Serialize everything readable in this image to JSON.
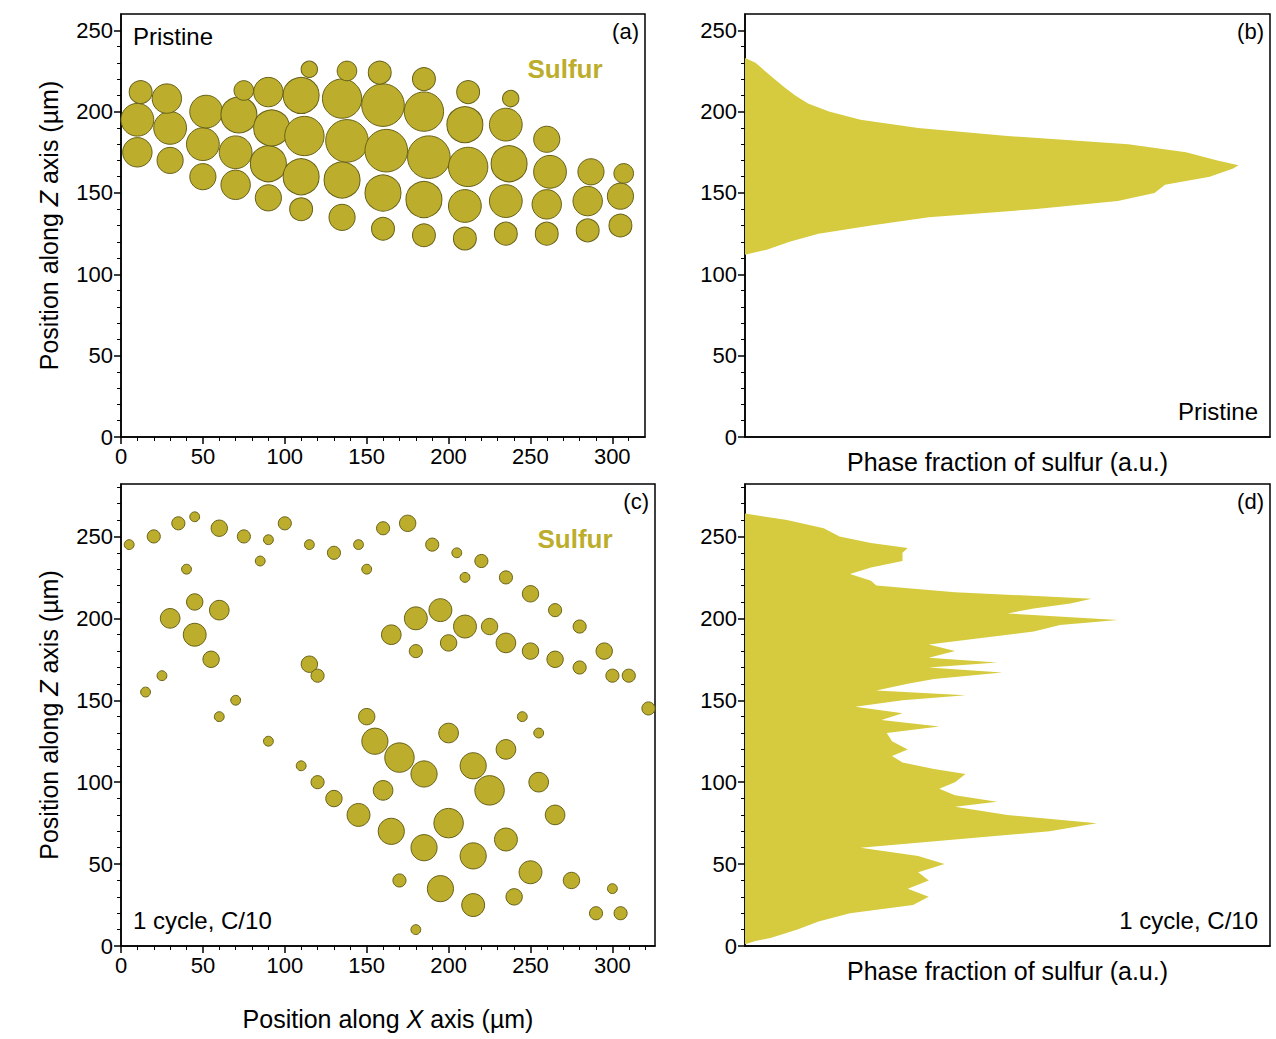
{
  "chart_data": [
    {
      "type": "scatter",
      "panel_label": "(a)",
      "annotations": [
        "Pristine"
      ],
      "ylabel": "Position along Z axis (µm)",
      "xlim": [
        0,
        320
      ],
      "xticks": [
        0,
        50,
        100,
        150,
        200,
        250,
        300
      ],
      "ylim": [
        0,
        260
      ],
      "yticks": [
        0,
        50,
        100,
        150,
        200,
        250
      ],
      "grid": false,
      "legend": "upper right",
      "series": [
        {
          "name": "Sulfur",
          "color": "#bcae2c",
          "marker": "circle",
          "x": [
            10,
            10,
            12,
            30,
            30,
            28,
            50,
            50,
            52,
            70,
            70,
            72,
            75,
            90,
            90,
            92,
            90,
            110,
            110,
            112,
            110,
            115,
            135,
            135,
            138,
            135,
            138,
            160,
            160,
            162,
            160,
            158,
            185,
            185,
            188,
            185,
            185,
            210,
            210,
            212,
            210,
            212,
            235,
            235,
            237,
            235,
            238,
            260,
            260,
            262,
            260,
            285,
            285,
            287,
            305,
            305,
            307
          ],
          "y": [
            175,
            195,
            212,
            170,
            190,
            208,
            160,
            180,
            200,
            155,
            175,
            198,
            213,
            147,
            168,
            190,
            212,
            140,
            160,
            185,
            210,
            226,
            135,
            158,
            182,
            208,
            225,
            128,
            150,
            176,
            204,
            224,
            124,
            146,
            172,
            200,
            220,
            122,
            142,
            166,
            192,
            212,
            125,
            145,
            168,
            192,
            208,
            125,
            143,
            163,
            183,
            127,
            145,
            163,
            130,
            148,
            162
          ],
          "size": [
            18,
            20,
            14,
            16,
            20,
            18,
            16,
            20,
            20,
            18,
            20,
            22,
            12,
            16,
            22,
            22,
            18,
            14,
            22,
            24,
            22,
            10,
            16,
            22,
            26,
            24,
            12,
            14,
            22,
            26,
            26,
            14,
            14,
            22,
            26,
            24,
            14,
            14,
            20,
            24,
            22,
            14,
            14,
            20,
            22,
            20,
            10,
            14,
            18,
            20,
            16,
            14,
            18,
            16,
            14,
            16,
            12
          ]
        }
      ]
    },
    {
      "type": "area",
      "orientation": "horizontal",
      "panel_label": "(b)",
      "annotations": [
        "Pristine"
      ],
      "xlabel": "Phase fraction of sulfur (a.u.)",
      "xlim": [
        0,
        1
      ],
      "xticks": [],
      "ylim": [
        0,
        260
      ],
      "yticks": [
        0,
        50,
        100,
        150,
        200,
        250
      ],
      "grid": false,
      "tick_labels": "y",
      "color": "#d6cb3e",
      "y": [
        112,
        115,
        120,
        125,
        130,
        135,
        140,
        145,
        150,
        155,
        160,
        165,
        167,
        170,
        175,
        180,
        185,
        190,
        195,
        200,
        205,
        210,
        215,
        220,
        225,
        230,
        233
      ],
      "values": [
        0,
        0.04,
        0.085,
        0.14,
        0.24,
        0.35,
        0.55,
        0.71,
        0.78,
        0.8,
        0.885,
        0.93,
        0.94,
        0.9,
        0.84,
        0.73,
        0.5,
        0.33,
        0.22,
        0.16,
        0.12,
        0.095,
        0.075,
        0.056,
        0.038,
        0.02,
        0
      ]
    },
    {
      "type": "scatter",
      "panel_label": "(c)",
      "annotations": [
        "1 cycle, C/10"
      ],
      "xlabel": "Position along X axis (µm)",
      "ylabel": "Position along Z axis (µm)",
      "xlim": [
        0,
        326
      ],
      "xticks": [
        0,
        50,
        100,
        150,
        200,
        250,
        300
      ],
      "ylim": [
        0,
        282
      ],
      "yticks": [
        0,
        50,
        100,
        150,
        200,
        250
      ],
      "grid": false,
      "legend": "upper right",
      "series": [
        {
          "name": "Sulfur",
          "color": "#bcae2c",
          "marker": "circle",
          "x": [
            5,
            20,
            35,
            45,
            60,
            75,
            90,
            100,
            115,
            130,
            145,
            160,
            175,
            190,
            205,
            220,
            235,
            250,
            265,
            280,
            295,
            310,
            322,
            40,
            85,
            150,
            210,
            30,
            45,
            45,
            55,
            60,
            25,
            15,
            115,
            120,
            165,
            180,
            195,
            210,
            225,
            235,
            250,
            265,
            280,
            300,
            180,
            200,
            150,
            155,
            170,
            185,
            200,
            215,
            225,
            235,
            160,
            120,
            130,
            145,
            165,
            185,
            200,
            215,
            235,
            250,
            265,
            255,
            195,
            215,
            240,
            275,
            290,
            305,
            300,
            170,
            110,
            90,
            60,
            70,
            180,
            255,
            245
          ],
          "y": [
            245,
            250,
            258,
            262,
            255,
            250,
            248,
            258,
            245,
            240,
            245,
            255,
            258,
            245,
            240,
            235,
            225,
            215,
            205,
            195,
            180,
            165,
            145,
            230,
            235,
            230,
            225,
            200,
            210,
            190,
            175,
            205,
            165,
            155,
            172,
            165,
            190,
            200,
            205,
            195,
            195,
            185,
            180,
            175,
            170,
            165,
            180,
            185,
            140,
            125,
            115,
            105,
            130,
            110,
            95,
            120,
            95,
            100,
            90,
            80,
            70,
            60,
            75,
            55,
            65,
            45,
            80,
            100,
            35,
            25,
            30,
            40,
            20,
            20,
            35,
            40,
            110,
            125,
            140,
            150,
            10,
            130,
            140
          ],
          "size": [
            6,
            8,
            8,
            6,
            10,
            8,
            6,
            8,
            6,
            8,
            6,
            8,
            10,
            8,
            6,
            8,
            8,
            10,
            8,
            8,
            10,
            8,
            8,
            6,
            6,
            6,
            6,
            12,
            10,
            14,
            10,
            12,
            6,
            6,
            10,
            8,
            12,
            14,
            14,
            14,
            10,
            12,
            10,
            10,
            8,
            8,
            8,
            10,
            10,
            16,
            18,
            16,
            12,
            16,
            18,
            12,
            12,
            8,
            10,
            14,
            16,
            16,
            18,
            16,
            14,
            14,
            12,
            12,
            16,
            14,
            10,
            10,
            8,
            8,
            6,
            8,
            6,
            6,
            6,
            6,
            6,
            6,
            6
          ]
        }
      ]
    },
    {
      "type": "area",
      "orientation": "horizontal",
      "panel_label": "(d)",
      "annotations": [
        "1 cycle, C/10"
      ],
      "xlabel": "Phase fraction of sulfur (a.u.)",
      "xlim": [
        0,
        1
      ],
      "xticks": [],
      "ylim": [
        0,
        282
      ],
      "yticks": [
        0,
        50,
        100,
        150,
        200,
        250
      ],
      "grid": false,
      "tick_labels": "y",
      "color": "#d6cb3e",
      "y": [
        1,
        3,
        5,
        10,
        15,
        20,
        25,
        30,
        35,
        40,
        45,
        50,
        55,
        60,
        65,
        70,
        75,
        80,
        85,
        88,
        92,
        96,
        100,
        105,
        108,
        112,
        116,
        120,
        125,
        130,
        134,
        138,
        142,
        146,
        150,
        153,
        156,
        160,
        163,
        167,
        170,
        173,
        176,
        180,
        184,
        188,
        192,
        196,
        199,
        203,
        206,
        209,
        212,
        216,
        220,
        223,
        227,
        231,
        235,
        240,
        243,
        246,
        250,
        255,
        260,
        264
      ],
      "values": [
        0,
        0.02,
        0.05,
        0.1,
        0.14,
        0.2,
        0.32,
        0.35,
        0.31,
        0.35,
        0.33,
        0.38,
        0.33,
        0.22,
        0.4,
        0.58,
        0.67,
        0.5,
        0.4,
        0.48,
        0.4,
        0.37,
        0.4,
        0.42,
        0.36,
        0.3,
        0.28,
        0.31,
        0.28,
        0.27,
        0.37,
        0.26,
        0.3,
        0.21,
        0.3,
        0.42,
        0.25,
        0.31,
        0.36,
        0.49,
        0.35,
        0.48,
        0.35,
        0.4,
        0.35,
        0.45,
        0.55,
        0.6,
        0.71,
        0.5,
        0.55,
        0.62,
        0.66,
        0.4,
        0.25,
        0.24,
        0.2,
        0.24,
        0.3,
        0.3,
        0.31,
        0.24,
        0.18,
        0.15,
        0.08,
        0
      ]
    }
  ]
}
